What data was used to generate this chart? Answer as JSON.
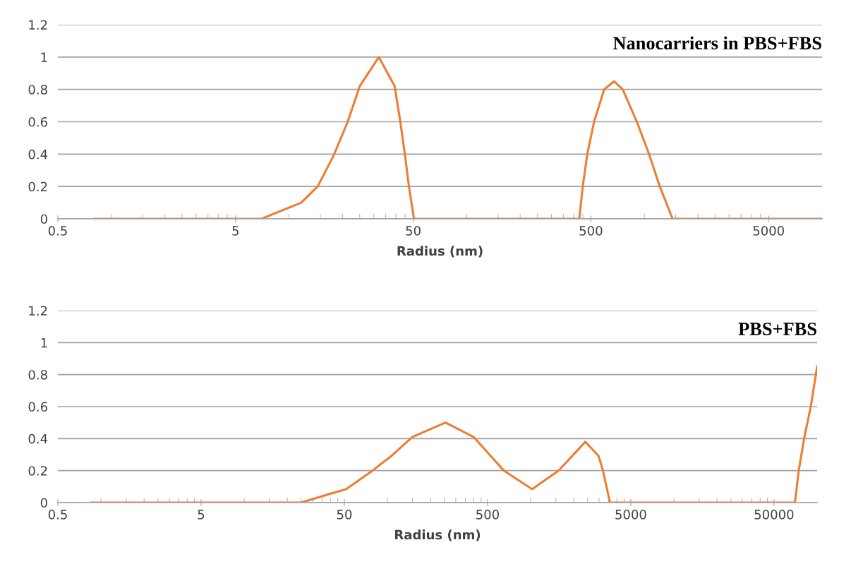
{
  "chart_data": [
    {
      "type": "line",
      "title": "Nanocarriers in PBS+FBS",
      "xlabel": "Radius (nm)",
      "log": "x",
      "grid": "y",
      "legend": false,
      "marker": "none",
      "line_style": "solid",
      "xlim": [
        0.5,
        10000
      ],
      "xticks": [
        0.5,
        5,
        50,
        500,
        5000
      ],
      "ylim": [
        0,
        1.2
      ],
      "yticks": [
        0,
        0.2,
        0.4,
        0.6,
        0.8,
        1,
        1.2
      ],
      "series": [
        {
          "color": "#ed7d31",
          "x": [
            0.8,
            7,
            11.7,
            14.5,
            17.8,
            21.4,
            25,
            32,
            39.3,
            42.3,
            45,
            47.3,
            50.5,
            430,
            450,
            477,
            521,
            594,
            675,
            755,
            907,
            1062,
            1221,
            1441,
            10000
          ],
          "values": [
            0,
            0,
            0.1,
            0.2,
            0.39,
            0.6,
            0.82,
            1.0,
            0.82,
            0.6,
            0.39,
            0.2,
            0,
            0,
            0.2,
            0.4,
            0.6,
            0.8,
            0.85,
            0.8,
            0.6,
            0.4,
            0.2,
            0,
            0
          ]
        }
      ]
    },
    {
      "type": "line",
      "title": "PBS+FBS",
      "xlabel": "Radius (nm)",
      "log": "x",
      "grid": "y",
      "legend": false,
      "marker": "none",
      "line_style": "solid",
      "xlim": [
        0.5,
        100000
      ],
      "xticks": [
        0.5,
        5,
        50,
        500,
        5000,
        50000
      ],
      "ylim": [
        0,
        1.2
      ],
      "yticks": [
        0,
        0.2,
        0.4,
        0.6,
        0.8,
        1,
        1.2
      ],
      "series": [
        {
          "color": "#ed7d31",
          "x": [
            0.85,
            25,
            38,
            51.5,
            78.7,
            106,
            149,
            254,
            400,
            650,
            1025,
            1566,
            2408,
            2985,
            3195,
            3580,
            70000,
            74400,
            81500,
            90300,
            100000
          ],
          "values": [
            0,
            0,
            0.05,
            0.084,
            0.2,
            0.29,
            0.41,
            0.5,
            0.41,
            0.2,
            0.084,
            0.2,
            0.38,
            0.29,
            0.2,
            0,
            0,
            0.2,
            0.41,
            0.6,
            0.85
          ]
        }
      ]
    }
  ]
}
